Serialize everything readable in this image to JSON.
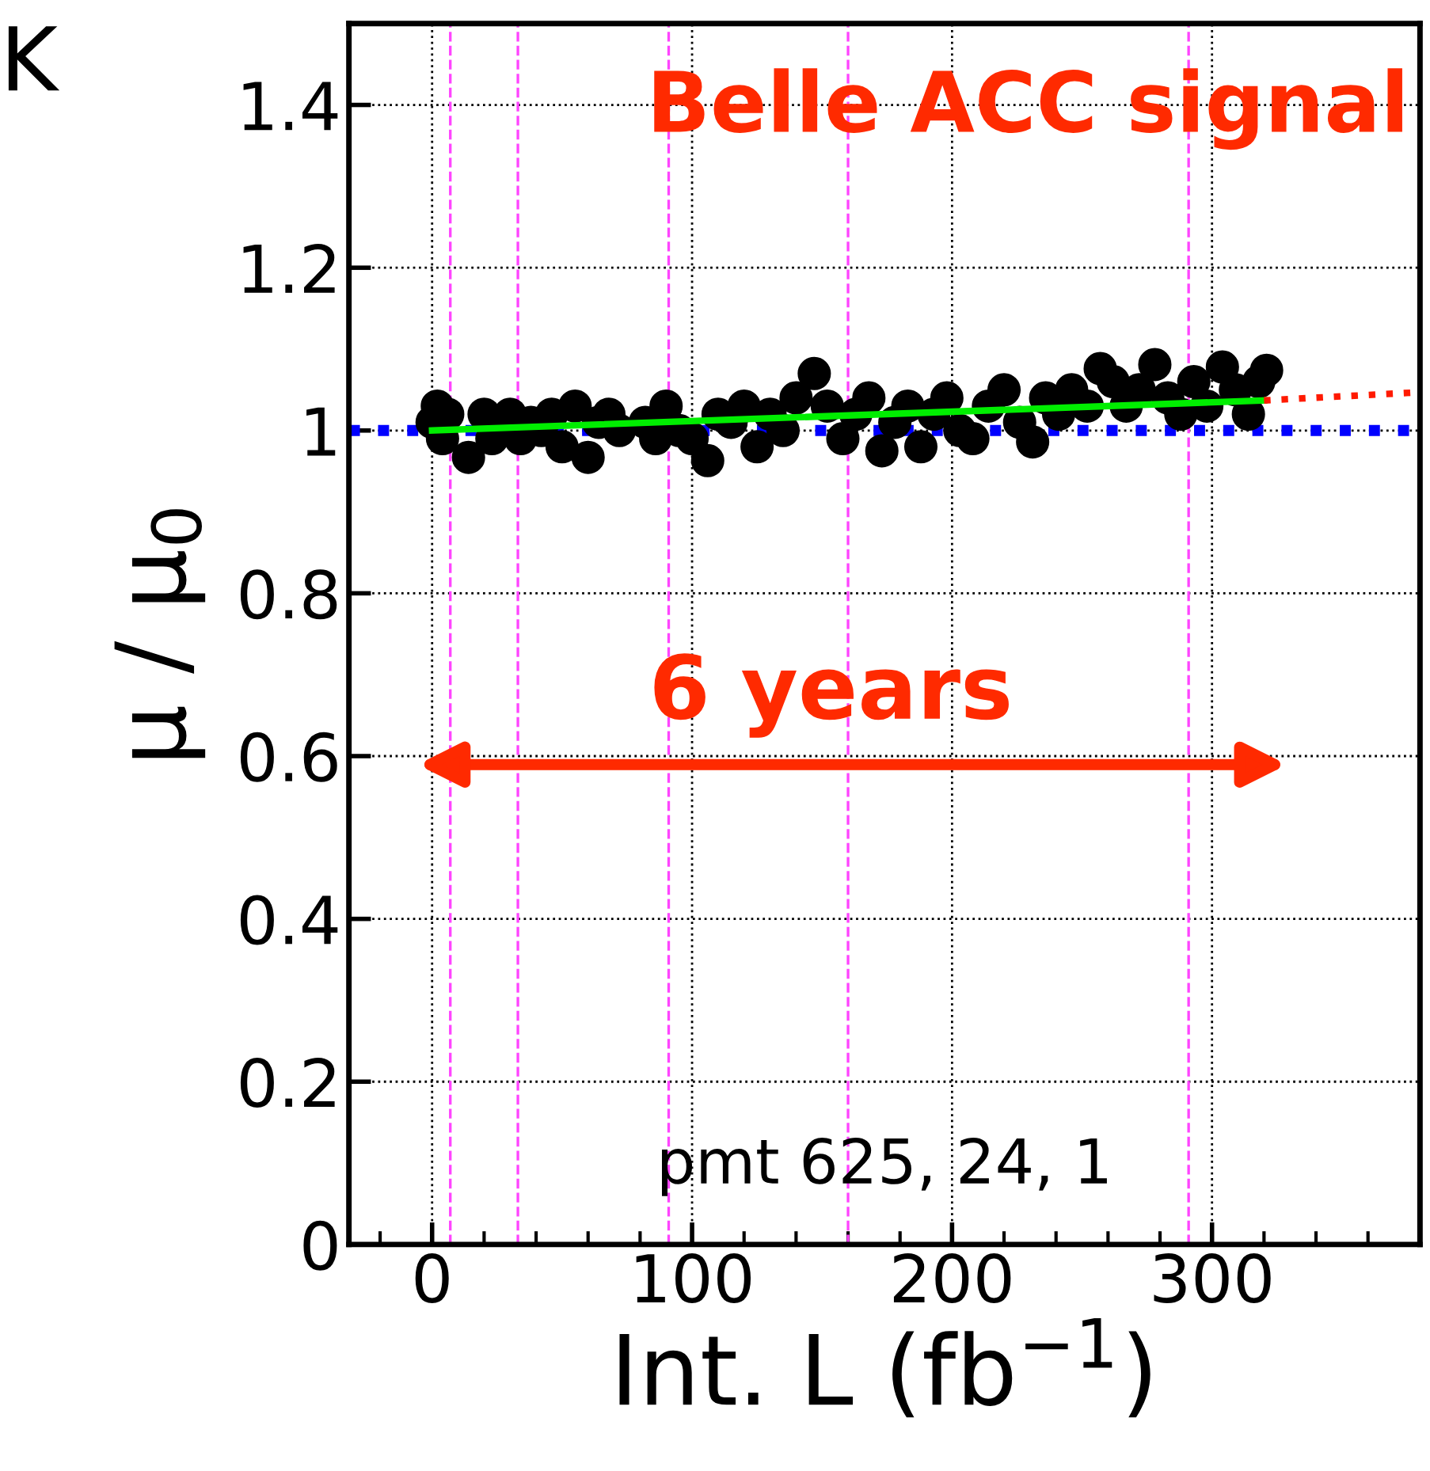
{
  "chart_data": {
    "type": "scatter",
    "title": "Belle ACC signal",
    "xlabel": "Int. L (fb$^{−1}$)",
    "ylabel": "μ / μ$_{0}$",
    "annotations": [
      "K",
      "6 years",
      "pmt 625, 24, 1"
    ],
    "xlim": [
      -32,
      380
    ],
    "ylim": [
      0,
      1.5
    ],
    "xticks": [
      0,
      100,
      200,
      300
    ],
    "yticks": [
      0,
      0.2,
      0.4,
      0.6,
      0.8,
      1,
      1.2,
      1.4
    ],
    "grid": true,
    "series": [
      {
        "marker": "circle",
        "color": "#000000",
        "x": [
          0,
          2,
          4,
          6,
          14,
          20,
          23,
          30,
          34,
          38,
          42,
          46,
          50,
          55,
          60,
          64,
          68,
          72,
          82,
          86,
          90,
          95,
          100,
          106,
          110,
          115,
          120,
          125,
          130,
          135,
          140,
          147,
          152,
          158,
          163,
          168,
          173,
          178,
          183,
          188,
          193,
          198,
          203,
          208,
          214,
          220,
          226,
          231,
          236,
          241,
          246,
          252,
          257,
          262,
          267,
          272,
          278,
          283,
          288,
          293,
          298,
          304,
          309,
          314,
          318,
          321
        ],
        "values": [
          1.01,
          1.03,
          0.99,
          1.02,
          0.967,
          1.02,
          0.99,
          1.02,
          0.99,
          1.01,
          1.0,
          1.02,
          0.98,
          1.03,
          0.967,
          1.01,
          1.02,
          1.0,
          1.01,
          0.99,
          1.03,
          1.0,
          0.99,
          0.963,
          1.02,
          1.01,
          1.03,
          0.98,
          1.02,
          1.0,
          1.04,
          1.07,
          1.03,
          0.99,
          1.02,
          1.04,
          0.975,
          1.01,
          1.03,
          0.98,
          1.02,
          1.04,
          1.0,
          0.99,
          1.03,
          1.05,
          1.01,
          0.986,
          1.04,
          1.02,
          1.05,
          1.03,
          1.076,
          1.06,
          1.03,
          1.05,
          1.081,
          1.04,
          1.02,
          1.06,
          1.03,
          1.078,
          1.05,
          1.02,
          1.06,
          1.074
        ]
      },
      {
        "type": "line",
        "marker": "none",
        "color": "#00ee00",
        "line_style": "solid",
        "x": [
          0,
          320
        ],
        "values": [
          1.0,
          1.037
        ]
      },
      {
        "type": "line",
        "marker": "none",
        "color": "#ff1a00",
        "line_style": "dotted",
        "x": [
          320,
          380
        ],
        "values": [
          1.037,
          1.047
        ]
      }
    ],
    "ref_lines": [
      {
        "axis": "y",
        "value": 1,
        "color": "#0000ff",
        "line_style": "dotted"
      },
      {
        "axis": "x",
        "value": 7,
        "color": "#ff44ff",
        "line_style": "dashed"
      },
      {
        "axis": "x",
        "value": 33,
        "color": "#ff44ff",
        "line_style": "dashed"
      },
      {
        "axis": "x",
        "value": 91,
        "color": "#ff44ff",
        "line_style": "dashed"
      },
      {
        "axis": "x",
        "value": 160,
        "color": "#ff44ff",
        "line_style": "dashed"
      },
      {
        "axis": "x",
        "value": 291,
        "color": "#ff44ff",
        "line_style": "dashed"
      }
    ]
  }
}
